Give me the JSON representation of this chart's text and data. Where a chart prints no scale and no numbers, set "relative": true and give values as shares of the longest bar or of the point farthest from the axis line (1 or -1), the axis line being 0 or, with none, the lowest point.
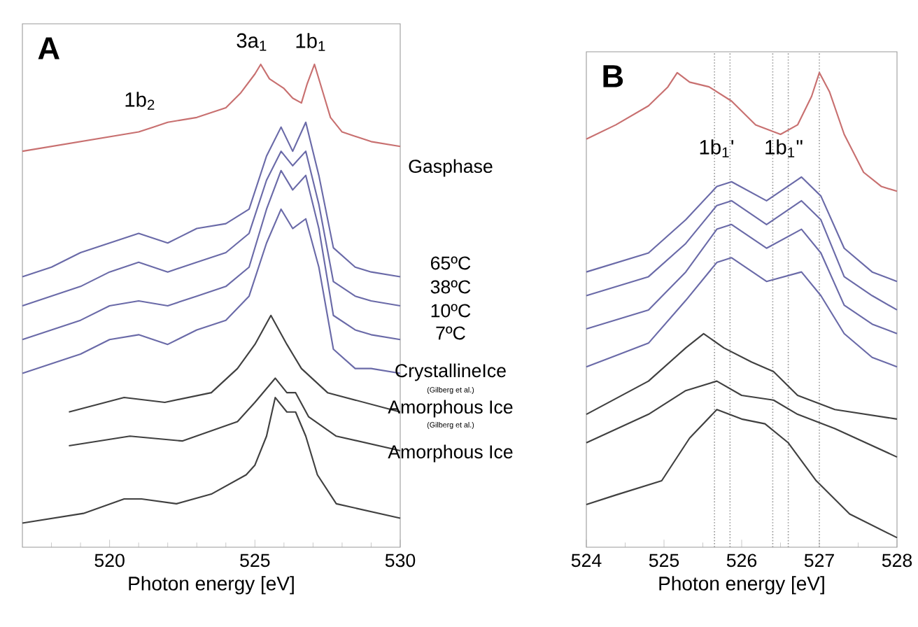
{
  "chart_data": [
    {
      "type": "line",
      "relative": true,
      "tick_labels": "x",
      "xlabel": "Photon energy [eV]",
      "xlim": [
        517,
        530
      ],
      "xticks": [
        {
          "value": 518,
          "label": null
        },
        {
          "value": 519,
          "label": null
        },
        520,
        {
          "value": 521,
          "label": null
        },
        {
          "value": 522,
          "label": null
        },
        {
          "value": 523,
          "label": null
        },
        {
          "value": 524,
          "label": null
        },
        525,
        {
          "value": 526,
          "label": null
        },
        {
          "value": 527,
          "label": null
        },
        {
          "value": 528,
          "label": null
        },
        {
          "value": 529,
          "label": null
        },
        530
      ],
      "annotations": [
        "A",
        "1b$_{2}$",
        "3a$_{1}$",
        "1b$_{1}$",
        "(Gilberg et al.)",
        "(Gilberg et al.)"
      ],
      "series": [
        {
          "name": "Gasphase",
          "color": "#c87070",
          "x": [
            517,
            518,
            519,
            520,
            521,
            521.5,
            522,
            523,
            524,
            524.5,
            525,
            525.2,
            525.5,
            526,
            526.3,
            526.6,
            526.8,
            527.05,
            527.3,
            527.6,
            528,
            529,
            530
          ],
          "values": [
            0.82,
            0.83,
            0.84,
            0.85,
            0.86,
            0.87,
            0.88,
            0.89,
            0.91,
            0.94,
            0.98,
            1.0,
            0.97,
            0.95,
            0.93,
            0.92,
            0.96,
            1.0,
            0.95,
            0.89,
            0.86,
            0.84,
            0.83
          ]
        },
        {
          "name": "65ºC",
          "color": "#6a6aa8",
          "x": [
            517,
            518,
            519,
            520,
            521,
            522,
            523,
            524,
            524.8,
            525.4,
            525.9,
            526.3,
            526.75,
            527.2,
            527.7,
            528.45,
            529,
            530
          ],
          "values": [
            0.56,
            0.58,
            0.61,
            0.63,
            0.65,
            0.63,
            0.66,
            0.67,
            0.7,
            0.81,
            0.87,
            0.82,
            0.88,
            0.77,
            0.62,
            0.58,
            0.57,
            0.56
          ]
        },
        {
          "name": "38ºC",
          "color": "#6a6aa8",
          "x": [
            517,
            518,
            519,
            520,
            521,
            522,
            523,
            524,
            524.8,
            525.4,
            525.9,
            526.3,
            526.75,
            527.2,
            527.7,
            528.45,
            529,
            530
          ],
          "values": [
            0.5,
            0.52,
            0.54,
            0.57,
            0.59,
            0.57,
            0.59,
            0.61,
            0.65,
            0.76,
            0.82,
            0.79,
            0.82,
            0.71,
            0.55,
            0.52,
            0.51,
            0.5
          ]
        },
        {
          "name": "10ºC",
          "color": "#6a6aa8",
          "x": [
            517,
            518,
            519,
            520,
            521,
            522,
            523,
            524,
            524.8,
            525.4,
            525.9,
            526.3,
            526.75,
            527.2,
            527.7,
            528.45,
            529,
            530
          ],
          "values": [
            0.43,
            0.45,
            0.47,
            0.5,
            0.51,
            0.5,
            0.52,
            0.54,
            0.58,
            0.7,
            0.78,
            0.74,
            0.77,
            0.66,
            0.48,
            0.45,
            0.44,
            0.43
          ]
        },
        {
          "name": "7ºC",
          "color": "#6a6aa8",
          "x": [
            517,
            518,
            519,
            520,
            521,
            522,
            523,
            524,
            524.8,
            525.4,
            525.9,
            526.3,
            526.75,
            527.2,
            527.7,
            528.45,
            529,
            530
          ],
          "values": [
            0.36,
            0.38,
            0.4,
            0.43,
            0.44,
            0.42,
            0.45,
            0.47,
            0.52,
            0.63,
            0.7,
            0.66,
            0.68,
            0.58,
            0.41,
            0.37,
            0.37,
            0.36
          ]
        },
        {
          "name": "CrystallineIce",
          "color": "#404040",
          "x": [
            518.6,
            520.5,
            521.9,
            523.5,
            524.4,
            525,
            525.55,
            526.1,
            526.6,
            527.5,
            530
          ],
          "values": [
            0.28,
            0.31,
            0.3,
            0.32,
            0.37,
            0.42,
            0.48,
            0.42,
            0.37,
            0.32,
            0.28
          ]
        },
        {
          "name": "Amorphous Ice",
          "color": "#404040",
          "x": [
            518.6,
            520.7,
            522.5,
            524.4,
            525,
            525.7,
            526.1,
            526.4,
            526.85,
            527.8,
            530
          ],
          "values": [
            0.21,
            0.23,
            0.22,
            0.26,
            0.3,
            0.35,
            0.32,
            0.32,
            0.27,
            0.23,
            0.2
          ]
        },
        {
          "name": "Amorphous Ice",
          "color": "#404040",
          "x": [
            517,
            519.1,
            520.5,
            521.1,
            522.3,
            523.5,
            524.7,
            525,
            525.4,
            525.7,
            526.1,
            526.4,
            526.75,
            527.15,
            527.8,
            530
          ],
          "values": [
            0.05,
            0.07,
            0.1,
            0.1,
            0.09,
            0.11,
            0.15,
            0.17,
            0.23,
            0.31,
            0.28,
            0.28,
            0.23,
            0.15,
            0.09,
            0.06
          ]
        }
      ]
    },
    {
      "type": "line",
      "relative": true,
      "tick_labels": "x",
      "xlabel": "Photon energy [eV]",
      "xlim": [
        524,
        528
      ],
      "xticks": [
        524,
        {
          "value": 524.5,
          "label": null
        },
        525,
        {
          "value": 525.5,
          "label": null
        },
        526,
        {
          "value": 526.5,
          "label": null
        },
        527,
        {
          "value": 527.5,
          "label": null
        },
        528
      ],
      "annotations": [
        "B",
        "1b$_{1}$'",
        "1b$_{1}$\""
      ],
      "ref_lines": [
        {
          "axis": "x",
          "value": 525.65,
          "color": "#999999",
          "line_style": "dotted"
        },
        {
          "axis": "x",
          "value": 525.85,
          "color": "#999999",
          "line_style": "dotted"
        },
        {
          "axis": "x",
          "value": 526.4,
          "color": "#999999",
          "line_style": "dotted"
        },
        {
          "axis": "x",
          "value": 526.6,
          "color": "#999999",
          "line_style": "dotted"
        },
        {
          "axis": "x",
          "value": 527.0,
          "color": "#999999",
          "line_style": "dotted"
        }
      ],
      "series": [
        {
          "color": "#c87070",
          "x": [
            524,
            524.38,
            524.8,
            525.05,
            525.17,
            525.33,
            525.58,
            525.87,
            526.18,
            526.5,
            526.72,
            526.9,
            527.0,
            527.13,
            527.32,
            527.57,
            527.8,
            528
          ],
          "values": [
            0.86,
            0.89,
            0.93,
            0.97,
            1.0,
            0.98,
            0.97,
            0.94,
            0.89,
            0.87,
            0.89,
            0.95,
            1.0,
            0.96,
            0.87,
            0.79,
            0.76,
            0.75
          ]
        },
        {
          "color": "#6a6aa8",
          "x": [
            524,
            524.8,
            525.28,
            525.68,
            525.87,
            526.32,
            526.77,
            527.02,
            527.32,
            527.68,
            528
          ],
          "values": [
            0.58,
            0.62,
            0.69,
            0.76,
            0.77,
            0.73,
            0.78,
            0.74,
            0.63,
            0.58,
            0.56
          ]
        },
        {
          "color": "#6a6aa8",
          "x": [
            524,
            524.8,
            525.28,
            525.68,
            525.87,
            526.32,
            526.77,
            527.02,
            527.32,
            527.68,
            528
          ],
          "values": [
            0.53,
            0.57,
            0.64,
            0.72,
            0.73,
            0.68,
            0.73,
            0.69,
            0.57,
            0.53,
            0.5
          ]
        },
        {
          "color": "#6a6aa8",
          "x": [
            524,
            524.8,
            525.28,
            525.68,
            525.87,
            526.32,
            526.77,
            527.02,
            527.32,
            527.68,
            528
          ],
          "values": [
            0.46,
            0.5,
            0.58,
            0.67,
            0.68,
            0.63,
            0.67,
            0.62,
            0.51,
            0.47,
            0.45
          ]
        },
        {
          "color": "#6a6aa8",
          "x": [
            524,
            524.8,
            525.28,
            525.68,
            525.87,
            526.32,
            526.77,
            527.02,
            527.32,
            527.68,
            528
          ],
          "values": [
            0.38,
            0.43,
            0.52,
            0.6,
            0.61,
            0.56,
            0.58,
            0.53,
            0.45,
            0.4,
            0.38
          ]
        },
        {
          "color": "#404040",
          "x": [
            524,
            524.8,
            525.28,
            525.51,
            525.77,
            526.13,
            526.41,
            526.72,
            527.2,
            528
          ],
          "values": [
            0.28,
            0.35,
            0.42,
            0.45,
            0.42,
            0.39,
            0.37,
            0.32,
            0.29,
            0.27
          ]
        },
        {
          "color": "#404040",
          "x": [
            524,
            524.8,
            525.28,
            525.68,
            526.0,
            526.41,
            526.72,
            527.2,
            528
          ],
          "values": [
            0.22,
            0.28,
            0.33,
            0.35,
            0.32,
            0.31,
            0.28,
            0.25,
            0.19
          ]
        },
        {
          "color": "#404040",
          "x": [
            524,
            524.38,
            524.97,
            525.33,
            525.68,
            526.0,
            526.3,
            526.6,
            526.96,
            527.39,
            528
          ],
          "values": [
            0.09,
            0.11,
            0.14,
            0.23,
            0.29,
            0.27,
            0.26,
            0.22,
            0.14,
            0.07,
            0.02
          ]
        }
      ]
    }
  ]
}
